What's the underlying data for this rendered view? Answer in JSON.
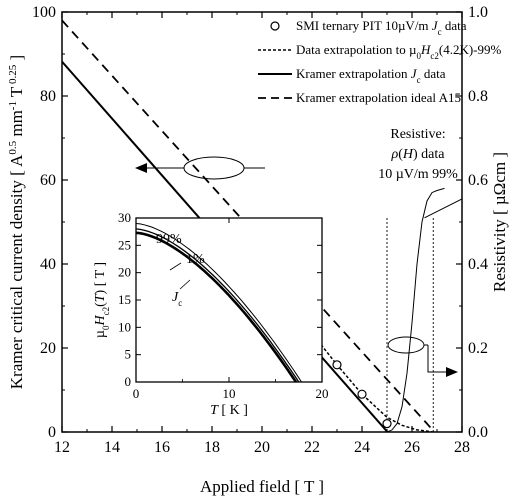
{
  "chart_data": [
    {
      "type": "line",
      "xlabel": "Applied field [ T ]",
      "ylabel": "Kramer critical current density [ A^0.5 mm^-1 T^0.25 ]",
      "ylabel_right": "Resistivity [ µΩcm ]",
      "xlim": [
        12,
        28
      ],
      "ylim": [
        0,
        100
      ],
      "ylim_right": [
        0.0,
        1.0
      ],
      "x_ticks": [
        "12",
        "14",
        "16",
        "18",
        "20",
        "22",
        "24",
        "26",
        "28"
      ],
      "y_ticks": [
        "0",
        "20",
        "40",
        "60",
        "80",
        "100"
      ],
      "y_ticks_right": [
        "0.0",
        "0.2",
        "0.4",
        "0.6",
        "0.8",
        "1.0"
      ],
      "legend_position": "top-right",
      "legend": [
        "SMI ternary PIT 10µV/m Jc data",
        "Data extrapolation to µ0Hc2(4.2K)-99%",
        "Kramer extrapolation Jc data",
        "Kramer extrapolation ideal A15"
      ],
      "series": [
        {
          "name": "SMI ternary PIT 10µV/m Jc data",
          "style": "open-circles",
          "x": [
            18,
            19.5,
            20.7,
            21.0,
            22.0,
            23.0,
            24.0,
            25.0
          ],
          "y": [
            47.3,
            38.8,
            31.8,
            29.5,
            23.5,
            16.0,
            9.0,
            2.0
          ]
        },
        {
          "name": "Data extrapolation to µ0Hc2(4.2K)-99%",
          "style": "dotted",
          "x": [
            21.0,
            22.0,
            23.0,
            24.0,
            25.0,
            25.6,
            26.2,
            26.85
          ],
          "y": [
            29.5,
            23.5,
            16.0,
            9.0,
            3.5,
            1.6,
            0.5,
            0.0
          ]
        },
        {
          "name": "Kramer extrapolation Jc data",
          "style": "solid",
          "x": [
            12.0,
            25.02
          ],
          "y": [
            88.2,
            0.0
          ]
        },
        {
          "name": "Kramer extrapolation ideal A15",
          "style": "dashed",
          "x": [
            12.0,
            26.9
          ],
          "y": [
            98.0,
            0.0
          ]
        },
        {
          "name": "Resistive: ρ(H) data",
          "axis": "right",
          "style": "thin-solid",
          "x": [
            24.5,
            25.0,
            25.2,
            25.4,
            25.6,
            25.8,
            26.0,
            26.2,
            26.4,
            26.6,
            26.8,
            27.0,
            27.3
          ],
          "y": [
            0.0,
            0.0,
            0.005,
            0.02,
            0.06,
            0.14,
            0.26,
            0.4,
            0.5,
            0.55,
            0.57,
            0.575,
            0.58
          ]
        }
      ],
      "markers": [
        {
          "label": "10 µV/m",
          "x": 25.0
        },
        {
          "label": "99%",
          "x": 26.85
        }
      ],
      "annotations": {
        "resistive_title": "Resistive:",
        "resistive_rho": "ρ(H) data",
        "resistive_levels": "10 µV/m  99%"
      },
      "tangent_line": {
        "x": [
          26.5,
          28.0
        ],
        "y": [
          0.51,
          0.555
        ]
      }
    },
    {
      "type": "line",
      "inset": true,
      "xlabel": "T [ K ]",
      "ylabel": "µ0Hc2(T) [ T ]",
      "xlim": [
        0,
        20
      ],
      "ylim": [
        0,
        30
      ],
      "x_ticks": [
        "0",
        "10",
        "20"
      ],
      "y_ticks": [
        "0",
        "5",
        "10",
        "15",
        "20",
        "25",
        "30"
      ],
      "series": [
        {
          "name": "99%",
          "Hc2_0": 29.0,
          "Tc": 17.8
        },
        {
          "name": "1%",
          "Hc2_0": 28.0,
          "Tc": 17.5
        },
        {
          "name": "Jc",
          "Hc2_0": 27.3,
          "Tc": 17.2
        }
      ]
    }
  ]
}
